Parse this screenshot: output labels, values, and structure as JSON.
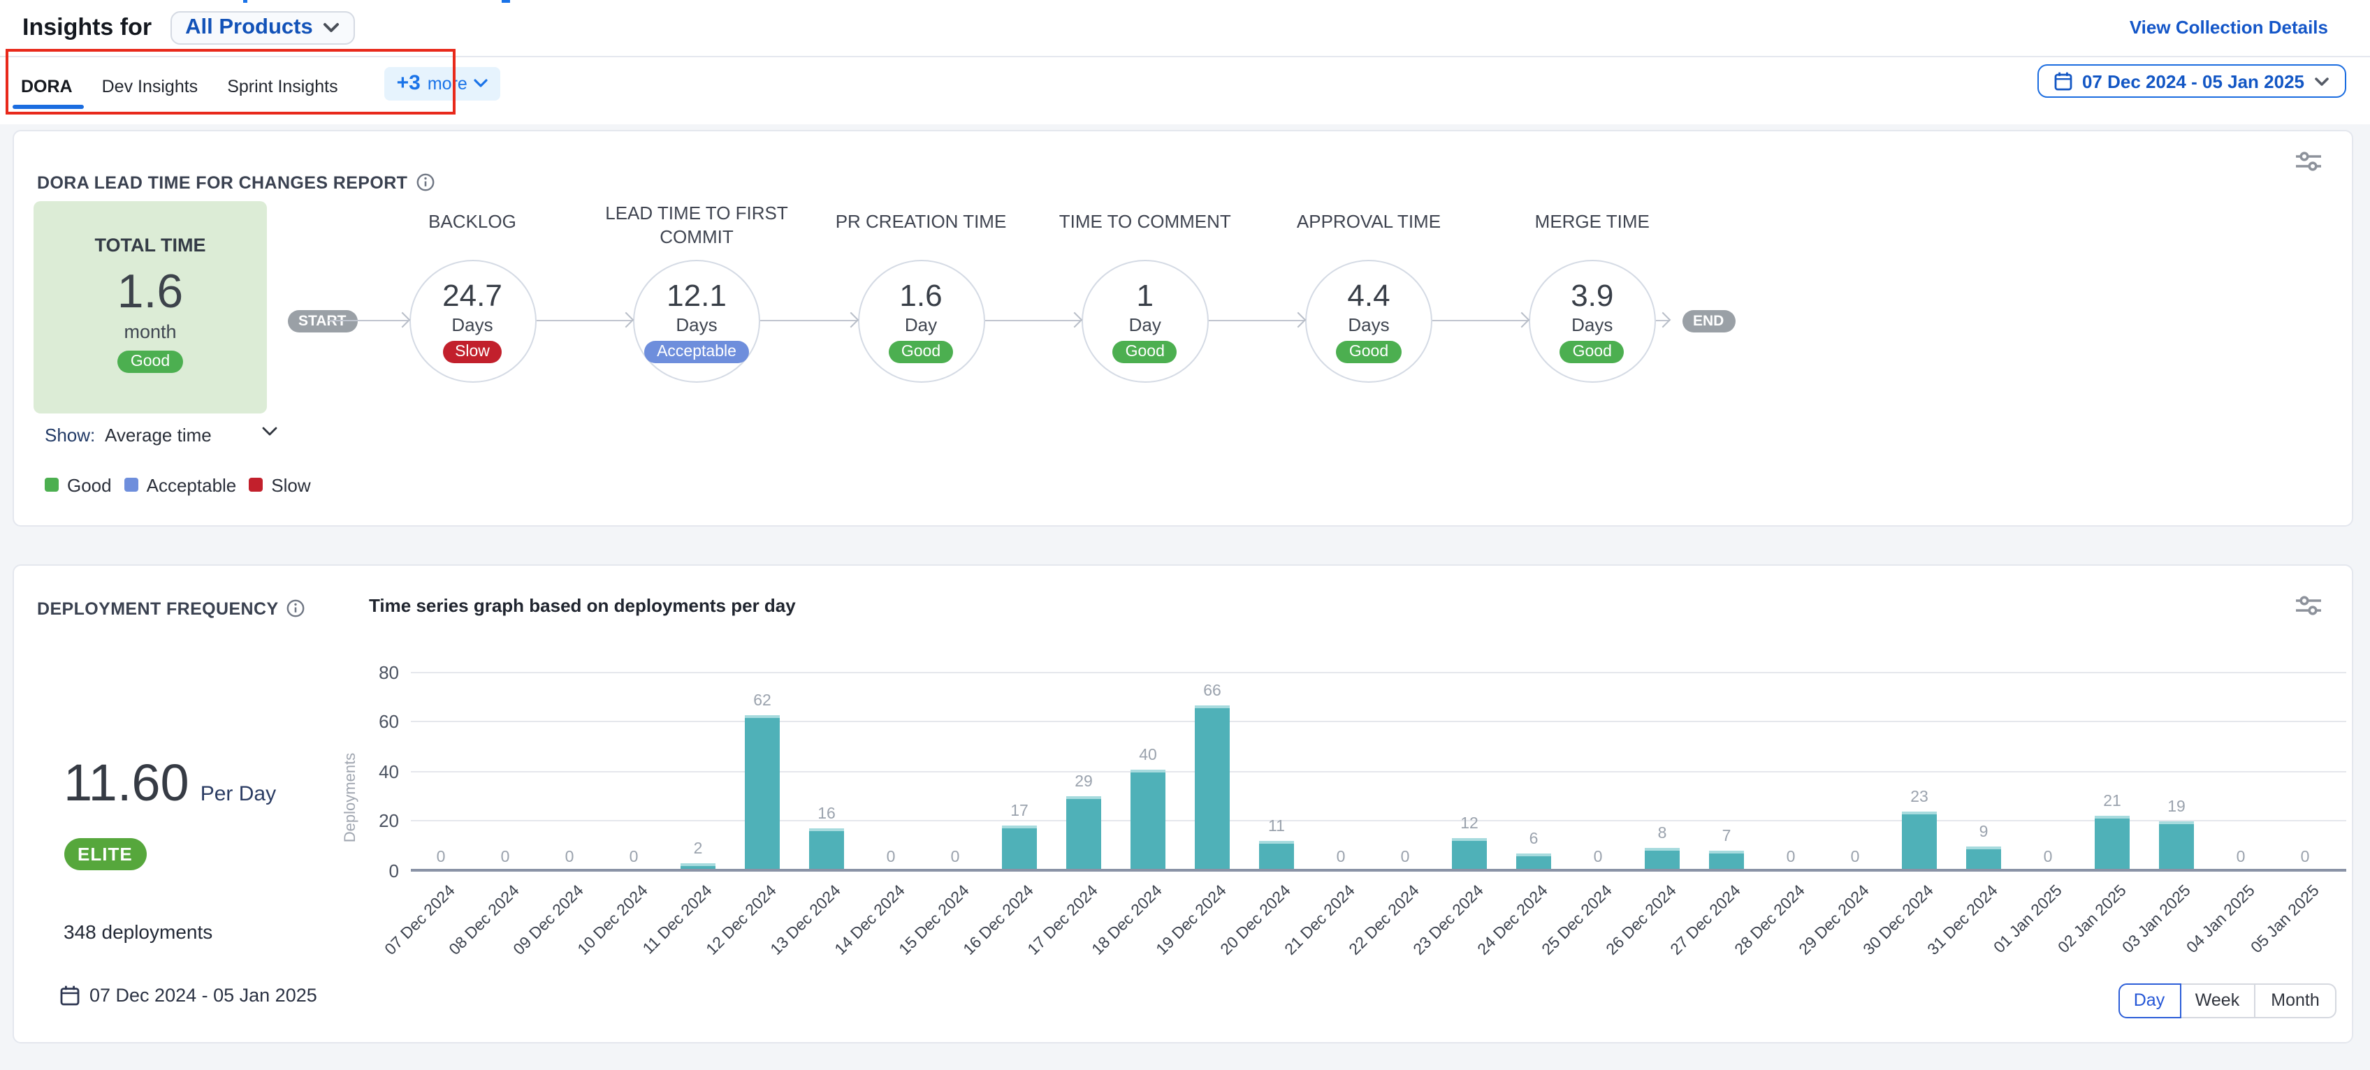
{
  "header": {
    "title": "Insights for",
    "product_selector": "All Products",
    "view_link": "View Collection Details"
  },
  "tabs": {
    "items": [
      "DORA",
      "Dev Insights",
      "Sprint Insights"
    ],
    "active": "DORA",
    "more_label": "+3",
    "more_suffix": "more"
  },
  "date_range": "07 Dec 2024 - 05 Jan 2025",
  "lead_time_card": {
    "title": "DORA LEAD TIME FOR CHANGES REPORT",
    "total": {
      "label": "TOTAL TIME",
      "value": "1.6",
      "unit": "month",
      "badge": "Good"
    },
    "start_label": "START",
    "end_label": "END",
    "stages": [
      {
        "label": "BACKLOG",
        "value": "24.7",
        "unit": "Days",
        "badge": "Slow"
      },
      {
        "label": "LEAD TIME TO FIRST COMMIT",
        "value": "12.1",
        "unit": "Days",
        "badge": "Acceptable"
      },
      {
        "label": "PR CREATION TIME",
        "value": "1.6",
        "unit": "Day",
        "badge": "Good"
      },
      {
        "label": "TIME TO COMMENT",
        "value": "1",
        "unit": "Day",
        "badge": "Good"
      },
      {
        "label": "APPROVAL TIME",
        "value": "4.4",
        "unit": "Days",
        "badge": "Good"
      },
      {
        "label": "MERGE TIME",
        "value": "3.9",
        "unit": "Days",
        "badge": "Good"
      }
    ],
    "badge_colors": {
      "Good": "#4caf50",
      "Acceptable": "#6e8edc",
      "Slow": "#c2202c"
    },
    "show_label": "Show:",
    "show_value": "Average time",
    "legend": [
      {
        "label": "Good",
        "color": "#4caf50"
      },
      {
        "label": "Acceptable",
        "color": "#6e8edc"
      },
      {
        "label": "Slow",
        "color": "#c2202c"
      }
    ]
  },
  "deployment_card": {
    "title": "DEPLOYMENT FREQUENCY",
    "rate_value": "11.60",
    "rate_unit": "Per Day",
    "tier_badge": "ELITE",
    "total_label": "348 deployments",
    "date_range": "07 Dec 2024 - 05 Jan 2025",
    "toggle": [
      "Day",
      "Week",
      "Month"
    ],
    "toggle_active": "Day"
  },
  "chart_data": {
    "type": "bar",
    "title": "Time series graph based on deployments per day",
    "xlabel": "",
    "ylabel": "Deployments",
    "ylim": [
      0,
      80
    ],
    "yticks": [
      0,
      20,
      40,
      60,
      80
    ],
    "grid": true,
    "bar_color": "#4fb1b8",
    "categories": [
      "07 Dec 2024",
      "08 Dec 2024",
      "09 Dec 2024",
      "10 Dec 2024",
      "11 Dec 2024",
      "12 Dec 2024",
      "13 Dec 2024",
      "14 Dec 2024",
      "15 Dec 2024",
      "16 Dec 2024",
      "17 Dec 2024",
      "18 Dec 2024",
      "19 Dec 2024",
      "20 Dec 2024",
      "21 Dec 2024",
      "22 Dec 2024",
      "23 Dec 2024",
      "24 Dec 2024",
      "25 Dec 2024",
      "26 Dec 2024",
      "27 Dec 2024",
      "28 Dec 2024",
      "29 Dec 2024",
      "30 Dec 2024",
      "31 Dec 2024",
      "01 Jan 2025",
      "02 Jan 2025",
      "03 Jan 2025",
      "04 Jan 2025",
      "05 Jan 2025"
    ],
    "values": [
      0,
      0,
      0,
      0,
      2,
      62,
      16,
      0,
      0,
      17,
      29,
      40,
      66,
      11,
      0,
      0,
      12,
      6,
      0,
      8,
      7,
      0,
      0,
      23,
      9,
      0,
      21,
      19,
      0,
      0
    ]
  }
}
